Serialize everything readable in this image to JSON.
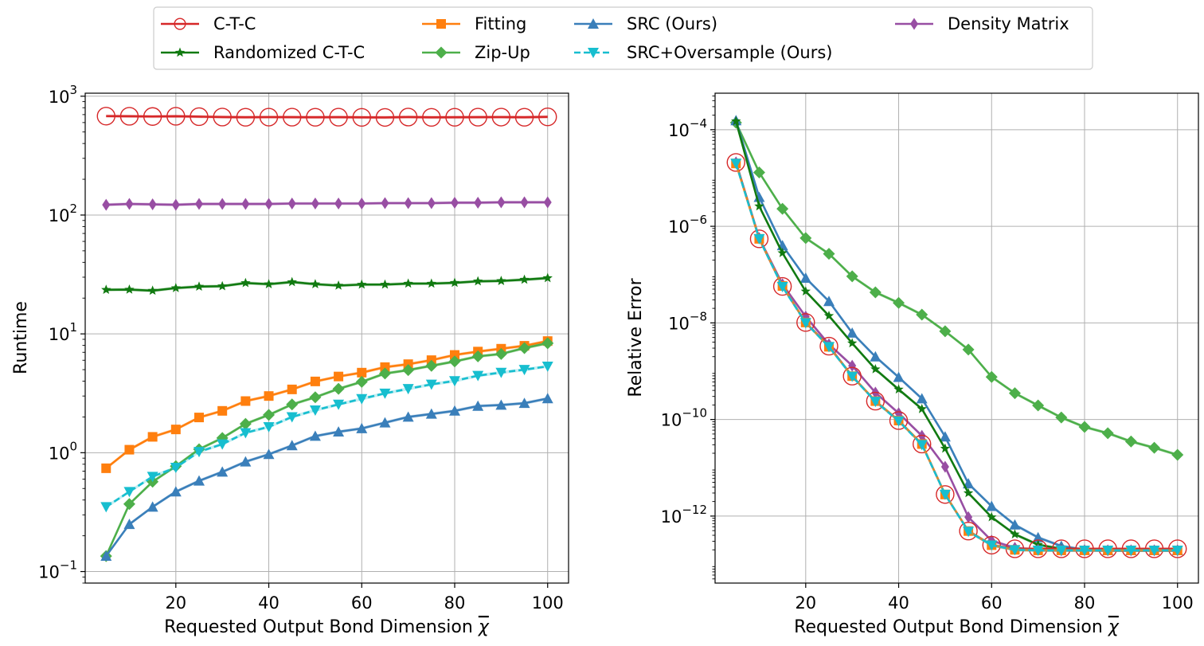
{
  "legend": {
    "placement": "top-center",
    "entries": [
      {
        "label": "C-T-C",
        "color": "#d62728",
        "marker": "circle-open",
        "dash": "solid"
      },
      {
        "label": "Randomized C-T-C",
        "color": "#117a11",
        "marker": "star",
        "dash": "solid"
      },
      {
        "label": "Fitting",
        "color": "#ff7f0e",
        "marker": "square",
        "dash": "solid"
      },
      {
        "label": "Zip-Up",
        "color": "#4daf4a",
        "marker": "diamond",
        "dash": "solid"
      },
      {
        "label": "SRC (Ours)",
        "color": "#3a7fba",
        "marker": "triangle-up",
        "dash": "solid"
      },
      {
        "label": "SRC+Oversample (Ours)",
        "color": "#17becf",
        "marker": "triangle-down",
        "dash": "dashed"
      },
      {
        "label": "Density Matrix",
        "color": "#984ea3",
        "marker": "thin-diamond",
        "dash": "solid"
      }
    ]
  },
  "chart_data": [
    {
      "type": "line",
      "title": "",
      "xlabel": "Requested Output Bond Dimension",
      "xlabel_symbol": "χ",
      "ylabel": "Runtime",
      "yscale": "log",
      "xlim": [
        0.5,
        104.5
      ],
      "ylim": [
        0.08,
        1060
      ],
      "grid": true,
      "xticks": [
        20,
        40,
        60,
        80,
        100
      ],
      "xtick_labels": [
        "20",
        "40",
        "60",
        "80",
        "100"
      ],
      "yticks": [
        {
          "value": 0.1,
          "base": "10",
          "exp": "−1"
        },
        {
          "value": 1,
          "base": "10",
          "exp": "0"
        },
        {
          "value": 10,
          "base": "10",
          "exp": "1"
        },
        {
          "value": 100,
          "base": "10",
          "exp": "2"
        },
        {
          "value": 1000,
          "base": "10",
          "exp": "3"
        }
      ],
      "x": [
        5,
        10,
        15,
        20,
        25,
        30,
        35,
        40,
        45,
        50,
        55,
        60,
        65,
        70,
        75,
        80,
        85,
        90,
        95,
        100
      ],
      "series": [
        {
          "name": "C-T-C",
          "values": [
            680,
            678,
            675,
            678,
            673,
            668,
            665,
            667,
            666,
            665,
            666,
            664,
            663,
            668,
            664,
            665,
            666,
            667,
            665,
            670
          ]
        },
        {
          "name": "Randomized C-T-C",
          "values": [
            23.5,
            23.6,
            23.1,
            24.3,
            25.0,
            25.2,
            26.8,
            26.2,
            27.3,
            26.2,
            25.5,
            26.0,
            26.0,
            26.5,
            26.5,
            26.9,
            27.7,
            27.9,
            28.6,
            29.5
          ]
        },
        {
          "name": "Fitting",
          "values": [
            0.74,
            1.06,
            1.36,
            1.57,
            1.98,
            2.25,
            2.72,
            3.0,
            3.41,
            3.98,
            4.38,
            4.72,
            5.25,
            5.56,
            6.01,
            6.65,
            7.1,
            7.5,
            7.94,
            8.7
          ]
        },
        {
          "name": "Zip-Up",
          "values": [
            0.135,
            0.37,
            0.57,
            0.77,
            1.07,
            1.33,
            1.75,
            2.08,
            2.55,
            2.93,
            3.45,
            3.95,
            4.64,
            4.96,
            5.39,
            5.86,
            6.47,
            6.78,
            7.6,
            8.35
          ]
        },
        {
          "name": "SRC (Ours)",
          "values": [
            0.135,
            0.25,
            0.35,
            0.47,
            0.58,
            0.69,
            0.84,
            0.97,
            1.15,
            1.38,
            1.5,
            1.6,
            1.79,
            2.0,
            2.12,
            2.25,
            2.47,
            2.52,
            2.61,
            2.86
          ]
        },
        {
          "name": "SRC+Oversample (Ours)",
          "values": [
            0.35,
            0.47,
            0.63,
            0.75,
            1.02,
            1.18,
            1.47,
            1.65,
            2.0,
            2.28,
            2.55,
            2.84,
            3.16,
            3.45,
            3.76,
            4.02,
            4.45,
            4.73,
            5.0,
            5.33
          ]
        },
        {
          "name": "Density Matrix",
          "values": [
            122,
            124,
            123,
            122,
            124,
            124,
            124,
            124,
            125,
            125,
            125,
            125,
            126,
            126,
            126,
            127,
            127,
            128,
            128,
            128
          ]
        }
      ]
    },
    {
      "type": "line",
      "title": "",
      "xlabel": "Requested Output Bond Dimension",
      "xlabel_symbol": "χ",
      "ylabel": "Relative Error",
      "yscale": "log",
      "xlim": [
        0.5,
        104.5
      ],
      "ylim": [
        4.1e-14,
        0.00057
      ],
      "grid": true,
      "xticks": [
        20,
        40,
        60,
        80,
        100
      ],
      "xtick_labels": [
        "20",
        "40",
        "60",
        "80",
        "100"
      ],
      "yticks": [
        {
          "value": 1e-12,
          "base": "10",
          "exp": "−12"
        },
        {
          "value": 1e-10,
          "base": "10",
          "exp": "−10"
        },
        {
          "value": 1e-08,
          "base": "10",
          "exp": "−8"
        },
        {
          "value": 1e-06,
          "base": "10",
          "exp": "−6"
        },
        {
          "value": 0.0001,
          "base": "10",
          "exp": "−4"
        }
      ],
      "x": [
        5,
        10,
        15,
        20,
        25,
        30,
        35,
        40,
        45,
        50,
        55,
        60,
        65,
        70,
        75,
        80,
        85,
        90,
        95,
        100
      ],
      "series": [
        {
          "name": "C-T-C",
          "values": [
            2.1e-05,
            5.5e-07,
            5.7e-08,
            1.02e-08,
            3.3e-09,
            7.9e-10,
            2.4e-10,
            9.5e-11,
            3.1e-11,
            2.8e-12,
            4.9e-13,
            2.5e-13,
            2.1e-13,
            2.1e-13,
            2.1e-13,
            2.1e-13,
            2.1e-13,
            2.1e-13,
            2.1e-13,
            2.1e-13
          ]
        },
        {
          "name": "Randomized C-T-C",
          "values": [
            0.00015,
            2.6e-06,
            2.8e-07,
            4.5e-08,
            1.4e-08,
            3.8e-09,
            1.1e-09,
            4.2e-10,
            1.65e-10,
            2.5e-11,
            3e-12,
            9.5e-13,
            4.2e-13,
            2.55e-13,
            2.1e-13,
            2e-13,
            1.95e-13,
            1.95e-13,
            1.95e-13,
            1.95e-13
          ]
        },
        {
          "name": "Fitting",
          "values": [
            2e-05,
            5.5e-07,
            5.8e-08,
            1.02e-08,
            3.2e-09,
            7.9e-10,
            2.4e-10,
            9.5e-11,
            3.1e-11,
            2.8e-12,
            4.9e-13,
            2.5e-13,
            2e-13,
            1.95e-13,
            1.95e-13,
            1.95e-13,
            1.95e-13,
            1.95e-13,
            1.95e-13,
            1.95e-13
          ]
        },
        {
          "name": "Zip-Up",
          "values": [
            0.00014,
            1.3e-05,
            2.3e-06,
            5.7e-07,
            2.7e-07,
            9.2e-08,
            4.3e-08,
            2.6e-08,
            1.48e-08,
            6.7e-09,
            2.8e-09,
            7.6e-10,
            3.5e-10,
            1.95e-10,
            1.1e-10,
            7e-11,
            5.2e-11,
            3.5e-11,
            2.6e-11,
            1.85e-11
          ]
        },
        {
          "name": "SRC (Ours)",
          "values": [
            0.000155,
            4e-06,
            4e-07,
            8.5e-08,
            2.8e-08,
            6.2e-09,
            2e-09,
            7.5e-10,
            2.7e-10,
            4.4e-11,
            4.7e-12,
            1.6e-12,
            6.6e-13,
            3.6e-13,
            2.4e-13,
            2e-13,
            1.95e-13,
            1.95e-13,
            1.95e-13,
            1.95e-13
          ]
        },
        {
          "name": "SRC+Oversample (Ours)",
          "values": [
            2e-05,
            5.5e-07,
            5.6e-08,
            1e-08,
            3.2e-09,
            7.8e-10,
            2.35e-10,
            9.3e-11,
            3e-11,
            2.8e-12,
            4.8e-13,
            2.5e-13,
            2e-13,
            1.95e-13,
            1.95e-13,
            1.95e-13,
            1.95e-13,
            1.95e-13,
            1.95e-13,
            1.95e-13
          ]
        },
        {
          "name": "Density Matrix",
          "values": [
            2.1e-05,
            5.7e-07,
            6.3e-08,
            1.35e-08,
            3.6e-09,
            1.3e-09,
            3.6e-10,
            1.35e-10,
            4.6e-11,
            1.05e-11,
            9.5e-13,
            3.1e-13,
            2.2e-13,
            2e-13,
            1.95e-13,
            1.95e-13,
            1.95e-13,
            1.95e-13,
            1.95e-13,
            1.95e-13
          ]
        }
      ]
    }
  ]
}
